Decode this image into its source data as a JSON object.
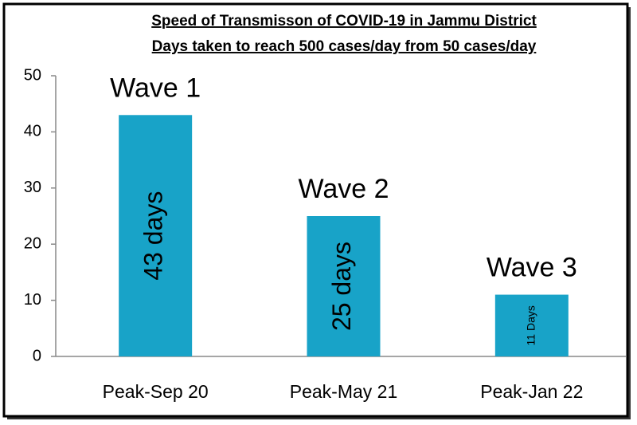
{
  "chart_data": {
    "type": "bar",
    "title": "Speed of Transmisson of COVID-19 in Jammu District",
    "subtitle": "Days taken to reach 500 cases/day from 50 cases/day",
    "categories": [
      "Peak-Sep 20",
      "Peak-May 21",
      "Peak-Jan 22"
    ],
    "values": [
      43,
      25,
      11
    ],
    "value_labels": [
      "43 days",
      "25 days",
      "11 Days"
    ],
    "annotations": [
      "Wave 1",
      "Wave 2",
      "Wave 3"
    ],
    "color": "#18a3c8",
    "ylim": [
      0,
      50
    ],
    "yticks": [
      0,
      10,
      20,
      30,
      40,
      50
    ],
    "grid": false
  }
}
